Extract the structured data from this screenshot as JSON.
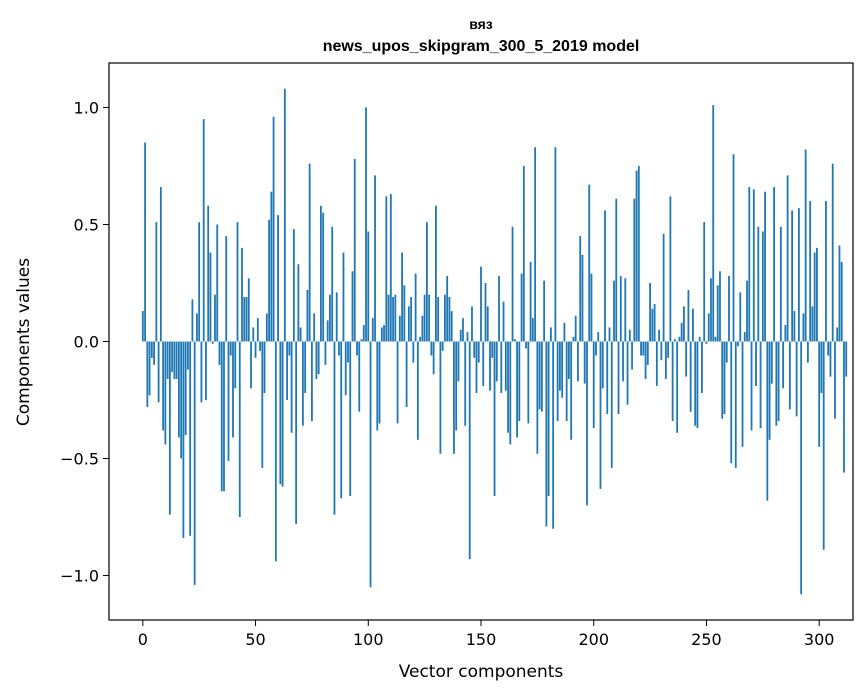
{
  "chart_data": {
    "type": "bar",
    "title": "вяз",
    "subtitle": "news_upos_skipgram_300_5_2019 model",
    "xlabel": "Vector components",
    "ylabel": "Components values",
    "xlim": [
      -15,
      315
    ],
    "ylim": [
      -1.19,
      1.19
    ],
    "xticks": [
      0,
      50,
      100,
      150,
      200,
      250,
      300
    ],
    "yticks": [
      -1.0,
      -0.5,
      0.0,
      0.5,
      1.0
    ],
    "xtick_labels": [
      "0",
      "50",
      "100",
      "150",
      "200",
      "250",
      "300"
    ],
    "ytick_labels": [
      "−1.0",
      "−0.5",
      "0.0",
      "0.5",
      "1.0"
    ],
    "bar_color": "#1f77b4",
    "grid": false,
    "values": [
      0.13,
      0.85,
      -0.28,
      -0.23,
      -0.07,
      -0.1,
      0.51,
      -0.26,
      0.66,
      -0.38,
      -0.44,
      -0.16,
      -0.74,
      -0.13,
      -0.16,
      -0.16,
      -0.41,
      -0.5,
      -0.84,
      -0.4,
      -0.12,
      -0.83,
      0.18,
      -1.04,
      0.12,
      0.51,
      -0.26,
      0.95,
      -0.25,
      0.58,
      0.38,
      -0.01,
      0.2,
      0.5,
      -0.1,
      -0.64,
      -0.64,
      0.45,
      -0.51,
      -0.06,
      -0.41,
      -0.2,
      0.51,
      -0.75,
      0.4,
      0.19,
      0.19,
      0.27,
      -0.2,
      0.06,
      -0.07,
      0.1,
      -0.04,
      -0.54,
      -0.22,
      0.12,
      0.52,
      0.64,
      0.96,
      -0.94,
      0.54,
      -0.61,
      -0.62,
      1.08,
      -0.25,
      -0.06,
      -0.39,
      0.48,
      -0.78,
      0.33,
      0.06,
      -0.36,
      -0.22,
      0.22,
      0.76,
      -0.34,
      0.12,
      -0.16,
      -0.14,
      0.58,
      0.55,
      -0.1,
      0.09,
      0.2,
      0.49,
      -0.74,
      0.21,
      -0.06,
      -0.67,
      0.38,
      -0.23,
      -0.09,
      -0.66,
      0.3,
      0.78,
      -0.06,
      -0.3,
      0.01,
      0.07,
      1.0,
      0.47,
      -1.05,
      0.1,
      0.71,
      -0.38,
      -0.35,
      0.06,
      0.07,
      0.62,
      0.2,
      0.63,
      0.19,
      0.2,
      -0.35,
      0.11,
      0.38,
      0.24,
      -0.28,
      0.15,
      0.19,
      -0.09,
      0.29,
      -0.42,
      0.02,
      0.11,
      0.2,
      0.51,
      0.2,
      -0.06,
      -0.14,
      0.58,
      0.19,
      -0.48,
      -0.04,
      0.2,
      0.28,
      0.19,
      0.13,
      -0.48,
      -0.38,
      -0.17,
      0.05,
      0.1,
      -0.36,
      0.04,
      -0.93,
      0.15,
      -0.07,
      -0.22,
      -0.09,
      0.32,
      -0.19,
      0.25,
      0.15,
      -0.21,
      -0.07,
      -0.66,
      -0.17,
      0.28,
      -0.22,
      0.17,
      -0.21,
      -0.39,
      -0.44,
      0.49,
      0.01,
      -0.41,
      -0.34,
      0.29,
      0.75,
      -0.03,
      -0.35,
      0.34,
      0.1,
      0.83,
      -0.48,
      -0.29,
      -0.3,
      0.26,
      -0.79,
      -0.66,
      0.06,
      -0.8,
      0.83,
      -0.34,
      -0.21,
      -0.24,
      0.08,
      -0.34,
      -0.16,
      -0.42,
      0.02,
      0.11,
      -0.17,
      0.45,
      0.37,
      -0.18,
      -0.7,
      0.67,
      0.29,
      -0.37,
      -0.06,
      0.04,
      -0.63,
      -0.2,
      0.56,
      -0.31,
      0.06,
      -0.54,
      0.26,
      0.61,
      -0.31,
      0.28,
      -0.17,
      0.27,
      -0.27,
      0.05,
      -0.12,
      0.61,
      0.73,
      0.75,
      -0.06,
      -0.06,
      -0.16,
      -0.1,
      0.25,
      0.14,
      0.16,
      -0.19,
      0.05,
      -0.08,
      0.46,
      -0.16,
      -0.07,
      0.62,
      -0.34,
      0.01,
      -0.39,
      0.02,
      0.08,
      0.15,
      -0.15,
      0.22,
      -0.3,
      0.14,
      -0.36,
      -0.37,
      0.02,
      -0.22,
      0.51,
      -0.01,
      0.12,
      0.27,
      1.01,
      0.02,
      0.24,
      0.3,
      -0.33,
      -0.31,
      -0.09,
      0.28,
      -0.52,
      0.8,
      -0.54,
      -0.02,
      0.21,
      -0.45,
      0.04,
      0.26,
      0.66,
      -0.38,
      0.65,
      -0.19,
      0.49,
      -0.37,
      0.47,
      0.64,
      -0.68,
      -0.42,
      -0.18,
      0.66,
      -0.36,
      -0.34,
      0.49,
      -0.2,
      0.07,
      0.71,
      -0.29,
      0.56,
      0.13,
      -0.32,
      0.57,
      -1.08,
      0.12,
      0.82,
      -0.09,
      0.6,
      0.15,
      0.38,
      0.4,
      -0.45,
      -0.22,
      -0.89,
      0.6,
      -0.06,
      -0.15,
      0.76,
      -0.33,
      0.06,
      0.41,
      0.34,
      -0.56,
      -0.15
    ]
  }
}
